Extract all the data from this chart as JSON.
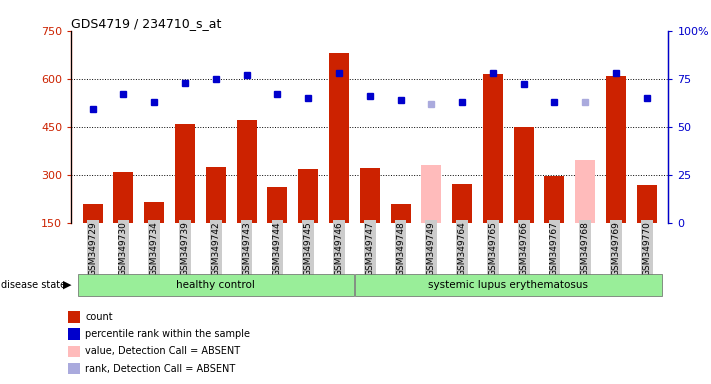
{
  "title": "GDS4719 / 234710_s_at",
  "samples": [
    "GSM349729",
    "GSM349730",
    "GSM349734",
    "GSM349739",
    "GSM349742",
    "GSM349743",
    "GSM349744",
    "GSM349745",
    "GSM349746",
    "GSM349747",
    "GSM349748",
    "GSM349749",
    "GSM349764",
    "GSM349765",
    "GSM349766",
    "GSM349767",
    "GSM349768",
    "GSM349769",
    "GSM349770"
  ],
  "count_values": [
    210,
    310,
    215,
    460,
    325,
    470,
    262,
    318,
    680,
    320,
    210,
    330,
    270,
    615,
    450,
    295,
    345,
    610,
    268
  ],
  "count_absent": [
    false,
    false,
    false,
    false,
    false,
    false,
    false,
    false,
    false,
    false,
    false,
    true,
    false,
    false,
    false,
    false,
    true,
    false,
    false
  ],
  "percentile_values": [
    59,
    67,
    63,
    73,
    75,
    77,
    67,
    65,
    78,
    66,
    64,
    62,
    63,
    78,
    72,
    63,
    63,
    78,
    65
  ],
  "percentile_absent": [
    false,
    false,
    false,
    false,
    false,
    false,
    false,
    false,
    false,
    false,
    false,
    true,
    false,
    false,
    false,
    false,
    true,
    false,
    false
  ],
  "group_labels": [
    "healthy control",
    "systemic lupus erythematosus"
  ],
  "ylim_left": [
    150,
    750
  ],
  "ylim_right": [
    0,
    100
  ],
  "yticks_left": [
    150,
    300,
    450,
    600,
    750
  ],
  "yticks_right": [
    0,
    25,
    50,
    75,
    100
  ],
  "bar_color_present": "#cc2200",
  "bar_color_absent": "#ffbbbb",
  "dot_color_present": "#0000cc",
  "dot_color_absent": "#aaaadd",
  "group_bg_color": "#99ee99",
  "tick_bg_color": "#cccccc",
  "legend_items": [
    {
      "label": "count",
      "color": "#cc2200"
    },
    {
      "label": "percentile rank within the sample",
      "color": "#0000cc"
    },
    {
      "label": "value, Detection Call = ABSENT",
      "color": "#ffbbbb"
    },
    {
      "label": "rank, Detection Call = ABSENT",
      "color": "#aaaadd"
    }
  ]
}
